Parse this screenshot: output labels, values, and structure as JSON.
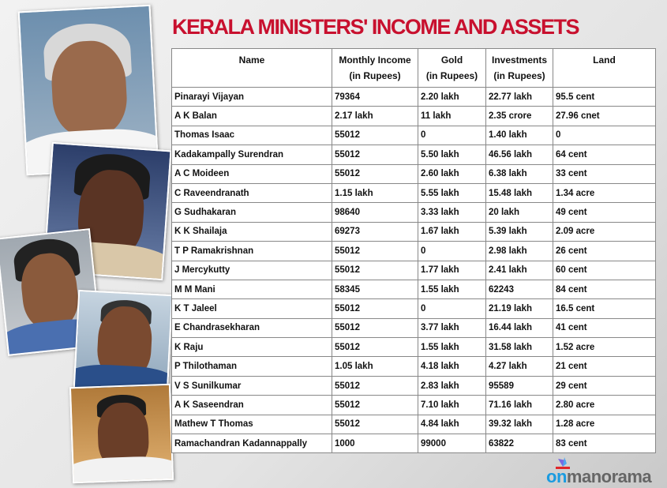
{
  "title": "KERALA MINISTERS' INCOME AND ASSETS",
  "table": {
    "headers": [
      {
        "line1": "Name",
        "line2": ""
      },
      {
        "line1": "Monthly Income",
        "line2": "(in Rupees)"
      },
      {
        "line1": "Gold",
        "line2": "(in Rupees)"
      },
      {
        "line1": "Investments",
        "line2": "(in Rupees)"
      },
      {
        "line1": "Land",
        "line2": ""
      }
    ],
    "rows": [
      [
        "Pinarayi Vijayan",
        "79364",
        "2.20 lakh",
        "22.77 lakh",
        "95.5 cent"
      ],
      [
        "A K Balan",
        "2.17 lakh",
        "11 lakh",
        "2.35 crore",
        "27.96 cnet"
      ],
      [
        "Thomas Isaac",
        "55012",
        "0",
        "1.40 lakh",
        "0"
      ],
      [
        "Kadakampally Surendran",
        "55012",
        "5.50 lakh",
        "46.56 lakh",
        "64 cent"
      ],
      [
        "A C Moideen",
        "55012",
        "2.60 lakh",
        "6.38 lakh",
        "33 cent"
      ],
      [
        "C Raveendranath",
        "1.15 lakh",
        "5.55 lakh",
        "15.48 lakh",
        "1.34 acre"
      ],
      [
        "G Sudhakaran",
        "98640",
        "3.33 lakh",
        "20 lakh",
        "49 cent"
      ],
      [
        "K K Shailaja",
        "69273",
        "1.67 lakh",
        "5.39 lakh",
        "2.09 acre"
      ],
      [
        "T P Ramakrishnan",
        "55012",
        "0",
        "2.98 lakh",
        "26 cent"
      ],
      [
        "J Mercykutty",
        "55012",
        "1.77 lakh",
        "2.41 lakh",
        "60 cent"
      ],
      [
        "M M Mani",
        "58345",
        "1.55 lakh",
        "62243",
        "84 cent"
      ],
      [
        "K T Jaleel",
        "55012",
        "0",
        "21.19 lakh",
        "16.5 cent"
      ],
      [
        "E Chandrasekharan",
        "55012",
        "3.77 lakh",
        "16.44 lakh",
        "41 cent"
      ],
      [
        "K Raju",
        "55012",
        "1.55 lakh",
        "31.58 lakh",
        "1.52 acre"
      ],
      [
        "P Thilothaman",
        "1.05 lakh",
        "4.18 lakh",
        "4.27 lakh",
        "21 cent"
      ],
      [
        "V S Sunilkumar",
        "55012",
        "2.83 lakh",
        "95589",
        "29 cent"
      ],
      [
        "A K Saseendran",
        "55012",
        "7.10 lakh",
        "71.16 lakh",
        "2.80 acre"
      ],
      [
        "Mathew T Thomas",
        "55012",
        "4.84 lakh",
        "39.32 lakh",
        "1.28 acre"
      ],
      [
        "Ramachandran Kadannappally",
        "1000",
        "99000",
        "63822",
        "83 cent"
      ]
    ]
  },
  "logo": {
    "part1": "on",
    "part2": "manorama"
  },
  "colors": {
    "title": "#c8102e",
    "logo_on": "#1a9be0",
    "logo_manorama": "#666666"
  }
}
